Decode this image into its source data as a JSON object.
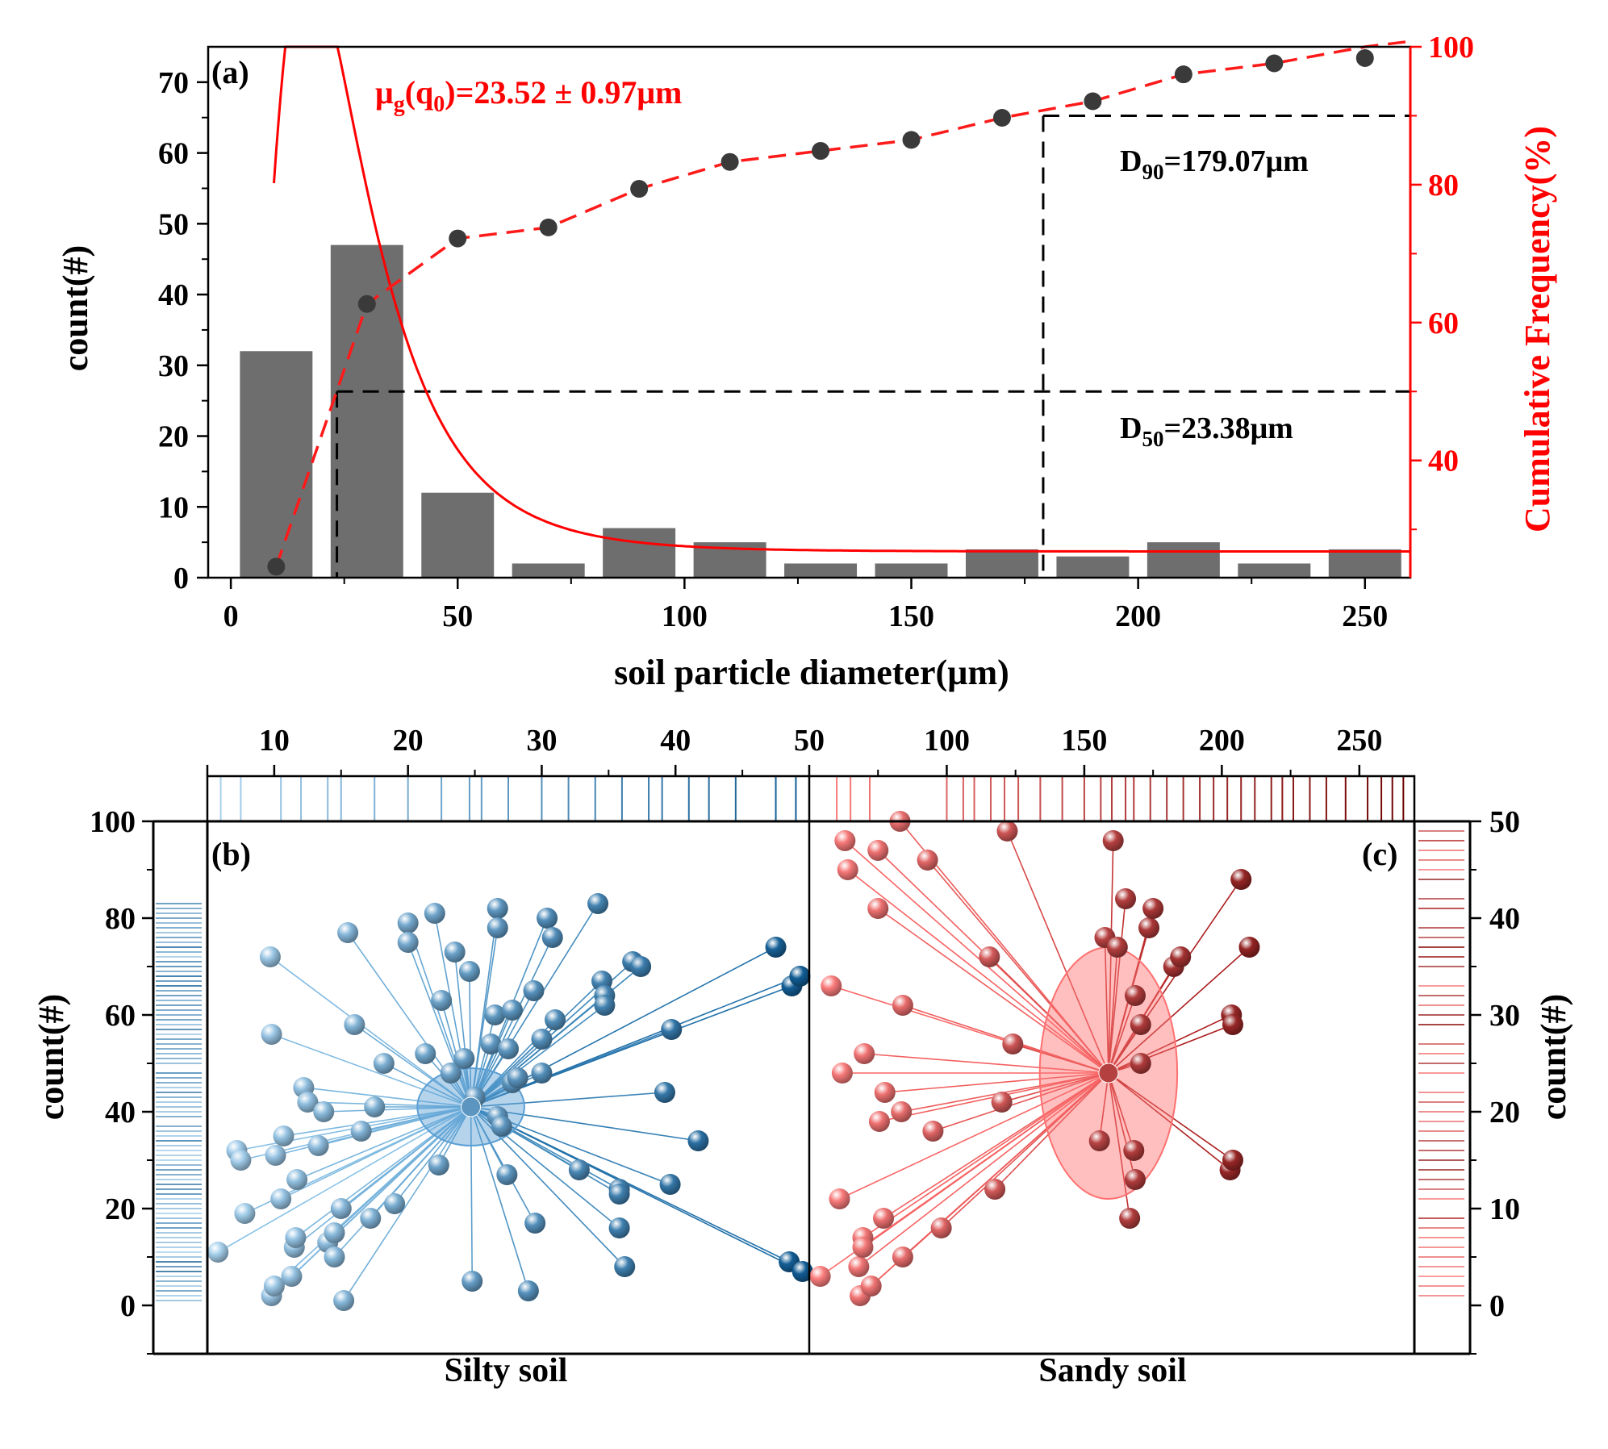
{
  "chart_data": [
    {
      "id": "a",
      "type": "bar",
      "panel_label": "(a)",
      "title": "",
      "xlabel": "soil particle diameter(µm)",
      "ylabel": "count(#)",
      "y2label": "Cumulative Frequency(%)",
      "xlim": [
        -5,
        260
      ],
      "ylim": [
        0,
        75
      ],
      "y2lim": [
        23,
        100
      ],
      "xticks": [
        0,
        50,
        100,
        150,
        200,
        250
      ],
      "yticks": [
        0,
        10,
        20,
        30,
        40,
        50,
        60,
        70
      ],
      "y2ticks": [
        40,
        60,
        80,
        100
      ],
      "bar_centers": [
        10,
        30,
        50,
        70,
        90,
        110,
        130,
        150,
        170,
        190,
        210,
        230,
        250
      ],
      "bar_width": 16,
      "values": [
        32,
        47,
        12,
        2,
        7,
        5,
        2,
        2,
        4,
        3,
        5,
        2,
        4
      ],
      "cumulative": {
        "x": [
          10,
          30,
          50,
          70,
          90,
          110,
          130,
          150,
          170,
          190,
          210,
          230,
          250
        ],
        "y": [
          24.6,
          62.7,
          72.2,
          73.8,
          79.4,
          83.3,
          84.9,
          86.5,
          89.7,
          92.1,
          96.0,
          97.6,
          100.8
        ]
      },
      "lognormal_fit": {
        "mu": 23.52,
        "sigma": 0.58,
        "peak": 75,
        "baseline": 3.7
      },
      "fit_label": "μg(q0)=23.52 ± 0.97μm",
      "fit_label_parts": {
        "pre": "μ",
        "sub1": "g",
        "mid": "(q",
        "sub2": "0",
        "post": ")=23.52 ± 0.97μm"
      },
      "annotations": [
        {
          "key": "d50",
          "name": "D",
          "sub": "50",
          "value": "=23.38μm",
          "x": 23.38,
          "y_cum": 50
        },
        {
          "key": "d90",
          "name": "D",
          "sub": "90",
          "value": "=179.07μm",
          "x": 179.07,
          "y_cum": 90
        }
      ],
      "colors": {
        "bars": "#6e6e6e",
        "fit": "#ff0000",
        "points": "#3a3a3a",
        "cumulative_line": "#ff1a1a",
        "guides": "#000000"
      }
    },
    {
      "id": "b",
      "type": "scatter",
      "panel_label": "(b)",
      "xlabel": "Silty soil",
      "ylabel": "count(#)",
      "ylim": [
        -10,
        100
      ],
      "yticks": [
        0,
        20,
        40,
        60,
        80,
        100
      ],
      "top_axis_ticks": [
        10,
        20,
        30,
        40,
        50
      ],
      "top_axis_range": [
        5,
        50
      ],
      "center": [
        24.7,
        41
      ],
      "ellipse_rx": 4.0,
      "ellipse_ry": 8,
      "points": [
        [
          5.8,
          11
        ],
        [
          7.2,
          32
        ],
        [
          7.5,
          30
        ],
        [
          7.8,
          19
        ],
        [
          9.7,
          72
        ],
        [
          9.8,
          56
        ],
        [
          9.8,
          2
        ],
        [
          10,
          4
        ],
        [
          10.1,
          31
        ],
        [
          10.5,
          22
        ],
        [
          10.7,
          35
        ],
        [
          11.3,
          6
        ],
        [
          11.5,
          12
        ],
        [
          11.6,
          14
        ],
        [
          11.7,
          26
        ],
        [
          12.2,
          45
        ],
        [
          12.5,
          42
        ],
        [
          13.3,
          33
        ],
        [
          13.7,
          40
        ],
        [
          14,
          13
        ],
        [
          14.5,
          10
        ],
        [
          14.5,
          15
        ],
        [
          15,
          20
        ],
        [
          15.2,
          1
        ],
        [
          15.5,
          77
        ],
        [
          16,
          58
        ],
        [
          16.5,
          36
        ],
        [
          17.2,
          18
        ],
        [
          17.5,
          41
        ],
        [
          18.2,
          50
        ],
        [
          19,
          21
        ],
        [
          20,
          79
        ],
        [
          20,
          75
        ],
        [
          21.3,
          52
        ],
        [
          22,
          81
        ],
        [
          22.3,
          29
        ],
        [
          22.5,
          63
        ],
        [
          23.2,
          48
        ],
        [
          23.5,
          73
        ],
        [
          24.2,
          51
        ],
        [
          24.6,
          69
        ],
        [
          24.8,
          5
        ],
        [
          25,
          43
        ],
        [
          26.2,
          54
        ],
        [
          26.5,
          60
        ],
        [
          26.7,
          39
        ],
        [
          26.7,
          82
        ],
        [
          26.7,
          78
        ],
        [
          27,
          37
        ],
        [
          27.4,
          27
        ],
        [
          27.5,
          53
        ],
        [
          27.8,
          61
        ],
        [
          27.8,
          46
        ],
        [
          28.2,
          47
        ],
        [
          29,
          3
        ],
        [
          29.4,
          65
        ],
        [
          29.5,
          17
        ],
        [
          30,
          48
        ],
        [
          30,
          55
        ],
        [
          30.4,
          80
        ],
        [
          30.8,
          76
        ],
        [
          31,
          59
        ],
        [
          32.8,
          28
        ],
        [
          34.2,
          83
        ],
        [
          34.5,
          67
        ],
        [
          34.7,
          64
        ],
        [
          34.7,
          62
        ],
        [
          35.8,
          24
        ],
        [
          35.8,
          16
        ],
        [
          35.8,
          23
        ],
        [
          36.2,
          8
        ],
        [
          36.8,
          71
        ],
        [
          37.4,
          70
        ],
        [
          39.2,
          44
        ],
        [
          39.6,
          25
        ],
        [
          39.7,
          57
        ],
        [
          41.7,
          34
        ],
        [
          47.5,
          74
        ],
        [
          48.5,
          9
        ],
        [
          48.7,
          66
        ],
        [
          49.3,
          68
        ],
        [
          49.5,
          7
        ]
      ],
      "rug_values": [
        6.0,
        7.5,
        10.5,
        12.0,
        14.0,
        15.0,
        17.5,
        20.0,
        22.5,
        24.6,
        25.5,
        27.5,
        30.0,
        32.0,
        34.0,
        36.0,
        38.0,
        39.0,
        41.0,
        42.5,
        44.5,
        47.5,
        49.0
      ],
      "colors": {
        "light": "#a9d2ee",
        "dark": "#0f5a92",
        "line_light": "#8bc3e8",
        "line_dark": "#1f6fa8",
        "ellipse": "#5b9fd4"
      }
    },
    {
      "id": "c",
      "type": "scatter",
      "panel_label": "(c)",
      "xlabel": "Sandy soil",
      "ylabel": "count(#)",
      "ylim": [
        -5,
        50
      ],
      "yticks": [
        0,
        10,
        20,
        30,
        40,
        50
      ],
      "top_axis_ticks": [
        50,
        100,
        150,
        200,
        250
      ],
      "top_axis_range": [
        50,
        270
      ],
      "center": [
        158.8,
        24
      ],
      "ellipse_rx": 25,
      "ellipse_ry": 13,
      "points": [
        [
          54,
          3
        ],
        [
          58,
          33
        ],
        [
          61,
          11
        ],
        [
          62,
          24
        ],
        [
          63,
          48
        ],
        [
          64,
          45
        ],
        [
          68,
          4
        ],
        [
          68.5,
          1
        ],
        [
          69.5,
          7
        ],
        [
          69.5,
          6
        ],
        [
          70,
          26
        ],
        [
          72.5,
          2
        ],
        [
          75,
          47
        ],
        [
          75,
          41
        ],
        [
          75.5,
          19
        ],
        [
          77.5,
          22
        ],
        [
          77,
          9
        ],
        [
          83,
          50
        ],
        [
          84,
          31
        ],
        [
          83.5,
          20
        ],
        [
          84,
          5
        ],
        [
          93,
          46
        ],
        [
          95,
          18
        ],
        [
          98,
          8
        ],
        [
          115.5,
          36
        ],
        [
          117.5,
          12
        ],
        [
          120,
          21
        ],
        [
          122,
          49
        ],
        [
          124,
          27
        ],
        [
          155.5,
          17
        ],
        [
          157.5,
          38
        ],
        [
          160.5,
          48
        ],
        [
          162,
          37
        ],
        [
          165,
          42
        ],
        [
          166.5,
          9
        ],
        [
          168,
          16
        ],
        [
          168.5,
          13
        ],
        [
          168.5,
          32
        ],
        [
          170.5,
          29
        ],
        [
          170.5,
          25
        ],
        [
          173.5,
          39
        ],
        [
          175,
          41
        ],
        [
          182.5,
          35
        ],
        [
          185,
          36
        ],
        [
          203,
          14
        ],
        [
          203.5,
          30
        ],
        [
          204,
          29
        ],
        [
          204,
          15
        ],
        [
          207,
          44
        ],
        [
          210,
          37
        ]
      ],
      "rug_values": [
        60,
        65,
        72,
        100,
        106,
        110,
        116,
        121,
        126,
        134,
        142,
        150,
        156,
        160,
        165,
        168,
        174,
        180,
        186,
        192,
        197,
        202,
        207,
        212,
        218,
        222,
        226,
        232,
        238,
        245,
        253,
        258,
        262,
        266
      ],
      "colors": {
        "light": "#ff8080",
        "dark": "#6b0000",
        "line_light": "#ff6b6b",
        "line_dark": "#8b0000",
        "ellipse": "#ff7070"
      }
    }
  ]
}
